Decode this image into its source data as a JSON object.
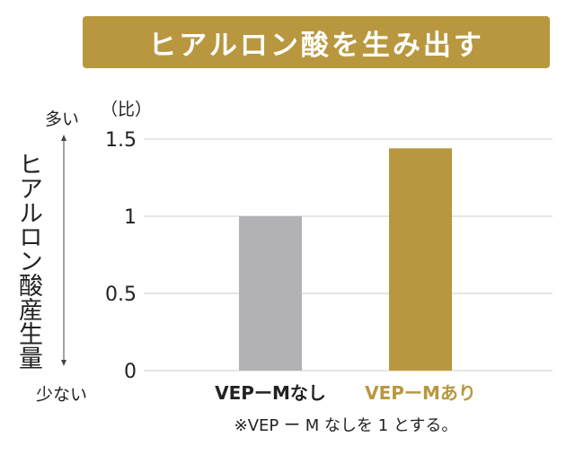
{
  "banner": {
    "title": "ヒアルロン酸を生み出す"
  },
  "side": {
    "vertical_title": "ヒアルロン酸産生量",
    "top_label": "多い",
    "bottom_label": "少ない"
  },
  "note": "※VEP ー M なしを 1 とする。",
  "colors": {
    "gold": "#b8973f",
    "gray": "#b2b2b4",
    "grid": "#cccccc",
    "text": "#222222"
  },
  "chart_data": {
    "type": "bar",
    "categories": [
      "VEPーMなし",
      "VEPーMあり"
    ],
    "values": [
      1.0,
      1.44
    ],
    "unit_label": "（比）",
    "ylim": [
      0,
      1.5
    ],
    "yticks": [
      {
        "value": 0,
        "label": "0"
      },
      {
        "value": 0.5,
        "label": "0.5"
      },
      {
        "value": 1,
        "label": "1"
      },
      {
        "value": 1.5,
        "label": "1.5"
      }
    ],
    "bar_colors": [
      "#b2b2b4",
      "#b8973f"
    ],
    "label_colors": [
      "#222222",
      "#b8973f"
    ],
    "grid": true
  }
}
